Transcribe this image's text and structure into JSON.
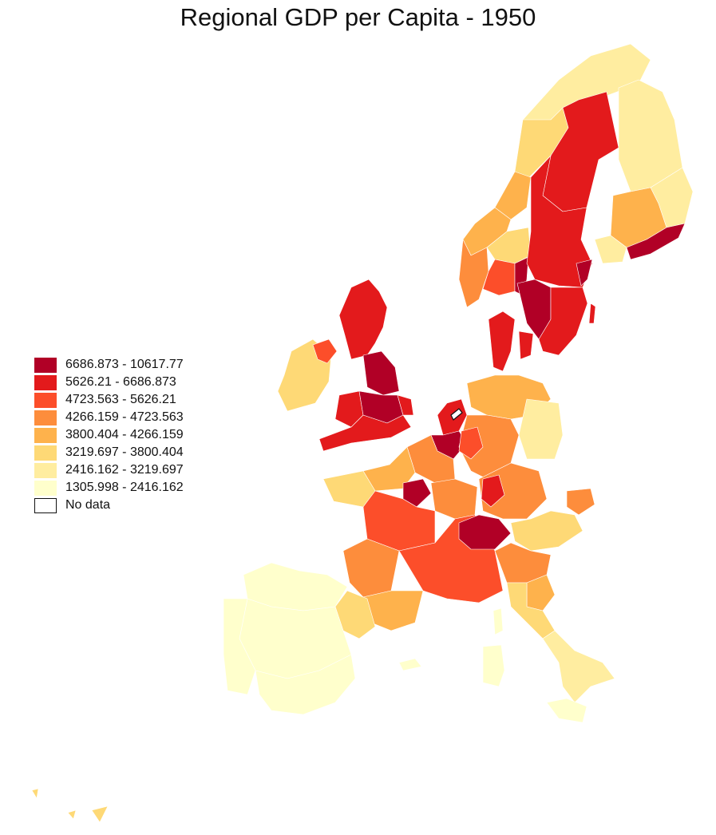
{
  "title": "Regional GDP per Capita - 1950",
  "legend": {
    "classes": [
      {
        "label": "6686.873 - 10617.77",
        "color": "#b10026"
      },
      {
        "label": "5626.21 - 6686.873",
        "color": "#e31a1c"
      },
      {
        "label": "4723.563 - 5626.21",
        "color": "#fc4e2a"
      },
      {
        "label": "4266.159 - 4723.563",
        "color": "#fd8d3c"
      },
      {
        "label": "3800.404 - 4266.159",
        "color": "#feb24c"
      },
      {
        "label": "3219.697 - 3800.404",
        "color": "#fed976"
      },
      {
        "label": "2416.162 - 3219.697",
        "color": "#ffeda0"
      },
      {
        "label": "1305.998 - 2416.162",
        "color": "#ffffcc"
      },
      {
        "label": "No data",
        "color": "#ffffff"
      }
    ]
  },
  "map_colors": {
    "c1": "#b10026",
    "c2": "#e31a1c",
    "c3": "#fc4e2a",
    "c4": "#fd8d3c",
    "c5": "#feb24c",
    "c6": "#fed976",
    "c7": "#ffeda0",
    "c8": "#ffffcc",
    "nodata": "#ffffff"
  }
}
